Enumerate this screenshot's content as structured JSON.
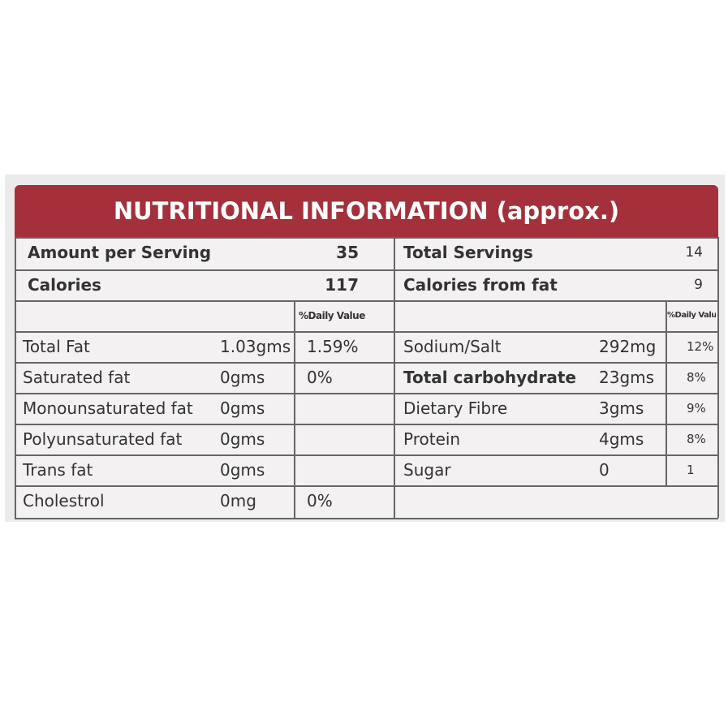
{
  "header": {
    "title": "NUTRITIONAL INFORMATION (approx.)"
  },
  "summary": [
    {
      "label": "Amount per Serving",
      "value": "35",
      "right_label": "Total Servings",
      "right_value": "14"
    },
    {
      "label": "Calories",
      "value": "117",
      "right_label": "Calories from fat",
      "right_value": "9"
    }
  ],
  "column_headers": {
    "left_daily_value": "%Daily Value",
    "right_daily_value": "%Daily Value"
  },
  "left_rows": [
    {
      "label": "Total Fat",
      "amount": "1.03gms",
      "daily_value": "1.59%"
    },
    {
      "label": "Saturated fat",
      "amount": "0gms",
      "daily_value": "0%"
    },
    {
      "label": "Monounsaturated fat",
      "amount": "0gms"
    },
    {
      "label": "Polyunsaturated fat",
      "amount": "0gms"
    },
    {
      "label": "Trans fat",
      "amount": "0gms"
    },
    {
      "label": "Cholestrol",
      "amount": "0mg",
      "daily_value": "0%"
    }
  ],
  "right_rows": [
    {
      "label": "Sodium/Salt",
      "amount": "292mg",
      "daily_value": "12%"
    },
    {
      "label": "Total carbohydrate",
      "amount": "23gms",
      "daily_value": "8%",
      "bold": true
    },
    {
      "label": "Dietary Fibre",
      "amount": "3gms",
      "daily_value": "9%"
    },
    {
      "label": "Protein",
      "amount": "4gms",
      "daily_value": "8%"
    },
    {
      "label": "Sugar",
      "amount": "0",
      "daily_value": "1"
    }
  ]
}
